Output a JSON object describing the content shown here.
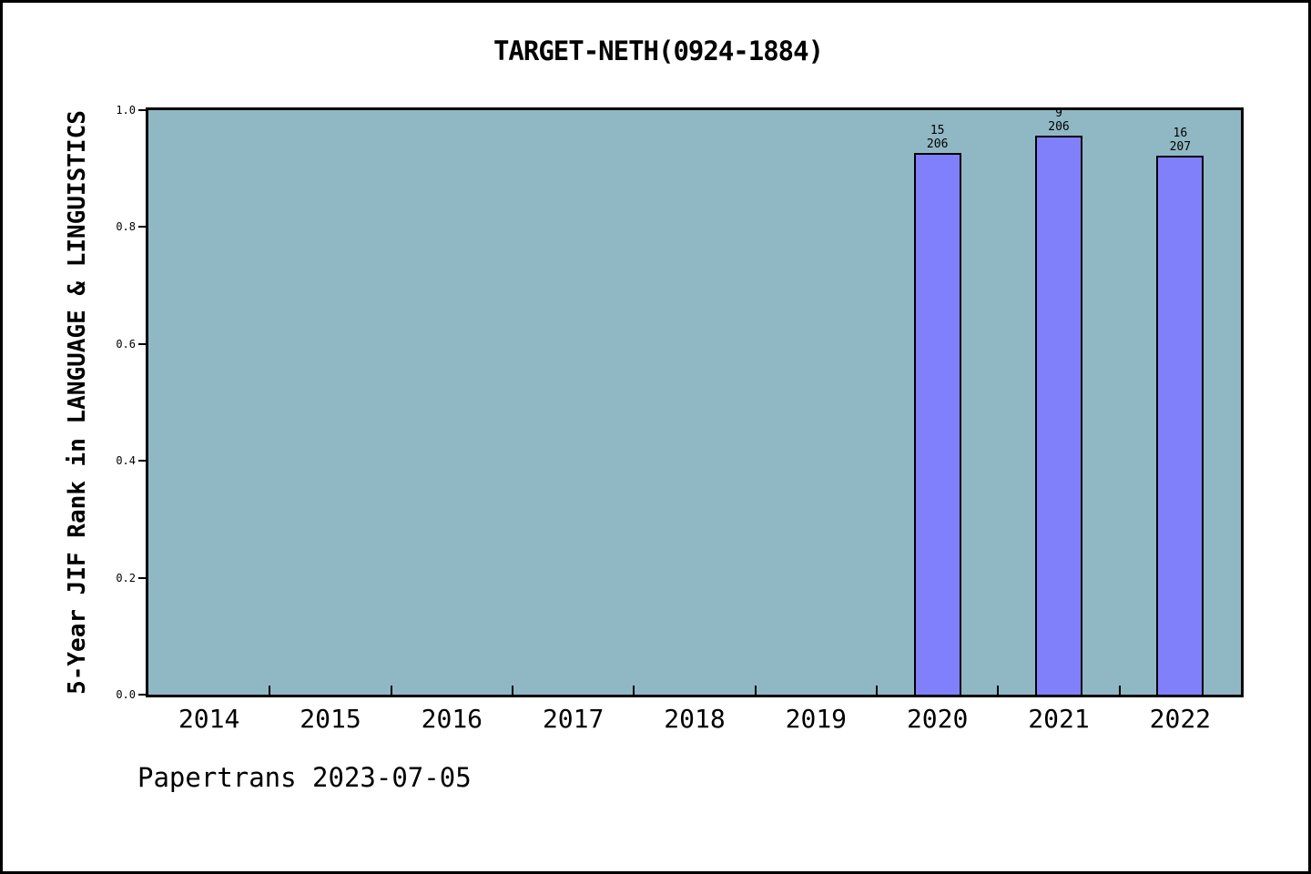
{
  "title": "TARGET-NETH(0924-1884)",
  "footer": "Papertrans 2023-07-05",
  "chart_data": {
    "type": "bar",
    "title": "TARGET-NETH(0924-1884)",
    "xlabel": "",
    "ylabel": "5-Year JIF Rank in LANGUAGE & LINGUISTICS",
    "categories": [
      "2014",
      "2015",
      "2016",
      "2017",
      "2018",
      "2019",
      "2020",
      "2021",
      "2022"
    ],
    "xlim": [
      2013.5,
      2022.5
    ],
    "ylim": [
      0.0,
      1.0
    ],
    "yticks": [
      "0.0",
      "0.2",
      "0.4",
      "0.6",
      "0.8",
      "1.0"
    ],
    "grid": "off",
    "legend": "none",
    "bars": [
      {
        "year": "2020",
        "rank": "15",
        "total": "206",
        "value": 0.9272
      },
      {
        "year": "2021",
        "rank": "9",
        "total": "206",
        "value": 0.9563
      },
      {
        "year": "2022",
        "rank": "16",
        "total": "207",
        "value": 0.9227
      }
    ],
    "colors": {
      "bar_fill": "#8080fa",
      "bar_edge": "#000000",
      "plot_bg": "#90b8c4",
      "frame": "#000000",
      "text": "#000000"
    }
  }
}
